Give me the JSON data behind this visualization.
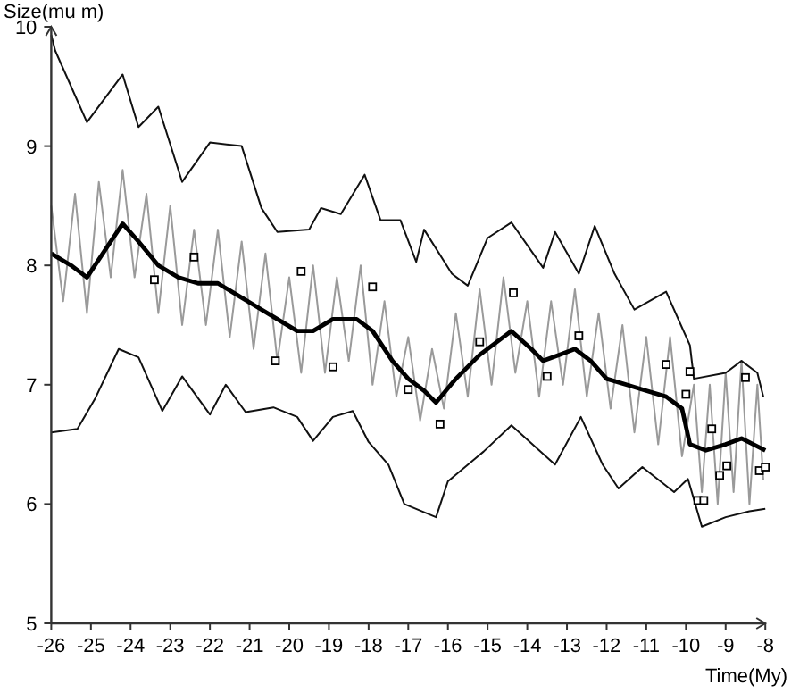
{
  "chart_data": {
    "type": "line",
    "xlabel": "Time(My)",
    "ylabel": "Size(mu m)",
    "xlim": [
      -26,
      -8
    ],
    "ylim": [
      5,
      10
    ],
    "xticks": [
      -26,
      -25,
      -24,
      -23,
      -22,
      -21,
      -20,
      -19,
      -18,
      -17,
      -16,
      -15,
      -14,
      -13,
      -12,
      -11,
      -10,
      -9,
      -8
    ],
    "yticks": [
      5,
      6,
      7,
      8,
      9,
      10
    ],
    "grid": false,
    "series": [
      {
        "color": "#9a9a9a",
        "x": [
          -26,
          -25.7,
          -25.4,
          -25.1,
          -24.8,
          -24.5,
          -24.2,
          -23.9,
          -23.6,
          -23.3,
          -23,
          -22.7,
          -22.4,
          -22.1,
          -21.8,
          -21.5,
          -21.2,
          -20.9,
          -20.6,
          -20.3,
          -20,
          -19.7,
          -19.4,
          -19.1,
          -18.8,
          -18.5,
          -18.2,
          -17.9,
          -17.6,
          -17.3,
          -17,
          -16.7,
          -16.4,
          -16.1,
          -15.8,
          -15.5,
          -15.2,
          -14.9,
          -14.6,
          -14.3,
          -14,
          -13.7,
          -13.4,
          -13.1,
          -12.8,
          -12.5,
          -12.2,
          -11.9,
          -11.6,
          -11.3,
          -11,
          -10.7,
          -10.4,
          -10.1,
          -9.8,
          -9.6,
          -9.4,
          -9.2,
          -9,
          -8.8,
          -8.6,
          -8.4,
          -8.2,
          -8.05
        ],
        "values": [
          8.5,
          7.7,
          8.6,
          7.6,
          8.7,
          7.9,
          8.8,
          7.9,
          8.6,
          7.6,
          8.5,
          7.5,
          8.3,
          7.5,
          8.3,
          7.4,
          8.2,
          7.3,
          8.1,
          7.2,
          7.9,
          7.1,
          8,
          7.1,
          7.9,
          7.2,
          8,
          7,
          7.7,
          6.9,
          7.4,
          6.7,
          7.3,
          6.8,
          7.6,
          6.9,
          7.8,
          7,
          7.9,
          7.1,
          7.7,
          6.9,
          7.7,
          7,
          7.8,
          6.9,
          7.6,
          6.8,
          7.5,
          6.6,
          7.4,
          6.5,
          7.4,
          6.4,
          7,
          6.1,
          7,
          6,
          7.1,
          6.1,
          7.2,
          6,
          7,
          6.2
        ]
      },
      {
        "color": "#111111",
        "x": [
          -26,
          -25.9,
          -25.1,
          -24.2,
          -23.8,
          -23.3,
          -22.7,
          -22,
          -21.2,
          -20.7,
          -20.3,
          -19.5,
          -19.2,
          -18.7,
          -18.1,
          -17.7,
          -17.2,
          -16.8,
          -16.6,
          -15.9,
          -15.5,
          -15,
          -14.4,
          -13.6,
          -13.3,
          -12.7,
          -12.3,
          -11.8,
          -11.3,
          -10.5,
          -9.9,
          -9.8,
          -9,
          -8.6,
          -8.2,
          -8.05
        ],
        "values": [
          9.93,
          9.8,
          9.2,
          9.6,
          9.16,
          9.33,
          8.7,
          9.03,
          9,
          8.48,
          8.28,
          8.3,
          8.48,
          8.43,
          8.76,
          8.38,
          8.38,
          8.03,
          8.3,
          7.93,
          7.83,
          8.23,
          8.36,
          7.98,
          8.28,
          7.93,
          8.33,
          7.93,
          7.63,
          7.78,
          7.33,
          7.05,
          7.1,
          7.2,
          7.1,
          6.9
        ]
      },
      {
        "color": "#111111",
        "x": [
          -26,
          -25.34,
          -24.9,
          -24.3,
          -23.8,
          -23.2,
          -22.7,
          -22,
          -21.6,
          -21.1,
          -20.4,
          -19.8,
          -19.4,
          -18.9,
          -18.4,
          -18,
          -17.5,
          -17.1,
          -16.3,
          -16,
          -15.1,
          -14.4,
          -13.3,
          -12.65,
          -12.1,
          -11.7,
          -11.1,
          -10.3,
          -9.95,
          -9.6,
          -9,
          -8.4,
          -8
        ],
        "values": [
          6.6,
          6.63,
          6.88,
          7.3,
          7.23,
          6.78,
          7.07,
          6.75,
          7,
          6.77,
          6.81,
          6.73,
          6.53,
          6.73,
          6.78,
          6.52,
          6.33,
          6,
          5.89,
          6.19,
          6.44,
          6.66,
          6.33,
          6.73,
          6.33,
          6.13,
          6.31,
          6.1,
          6.21,
          5.81,
          5.89,
          5.94,
          5.96
        ]
      },
      {
        "color": "#000000",
        "x": [
          -26,
          -25.5,
          -25.1,
          -24.6,
          -24.2,
          -23.8,
          -23.3,
          -22.8,
          -22.3,
          -21.8,
          -21.3,
          -20.8,
          -20.3,
          -19.8,
          -19.4,
          -18.9,
          -18.3,
          -17.9,
          -17.4,
          -17,
          -16.6,
          -16.3,
          -15.8,
          -15.2,
          -14.4,
          -13.9,
          -13.6,
          -13.2,
          -12.8,
          -12.4,
          -12,
          -11.5,
          -11,
          -10.5,
          -10.1,
          -9.9,
          -9.5,
          -9,
          -8.6,
          -8
        ],
        "values": [
          8.1,
          8,
          7.9,
          8.15,
          8.35,
          8.2,
          8,
          7.9,
          7.85,
          7.85,
          7.75,
          7.65,
          7.55,
          7.45,
          7.45,
          7.55,
          7.55,
          7.45,
          7.2,
          7.05,
          6.95,
          6.85,
          7.05,
          7.25,
          7.45,
          7.3,
          7.2,
          7.25,
          7.3,
          7.2,
          7.05,
          7,
          6.95,
          6.9,
          6.8,
          6.5,
          6.45,
          6.5,
          6.55,
          6.45
        ]
      },
      {
        "type": "scatter",
        "color": "#000000",
        "marker": "square",
        "x": [
          -23.4,
          -22.4,
          -19.7,
          -17.9,
          -20.35,
          -18.9,
          -17,
          -16.2,
          -15.2,
          -14.35,
          -13.5,
          -12.7,
          -10.5,
          -9.9,
          -10,
          -9.35,
          -9.7,
          -9.55,
          -9.15,
          -8.97,
          -8.5,
          -8.15,
          -8
        ],
        "values": [
          7.88,
          8.07,
          7.95,
          7.82,
          7.2,
          7.15,
          6.96,
          6.67,
          7.36,
          7.77,
          7.07,
          7.41,
          7.17,
          7.11,
          6.92,
          6.63,
          6.03,
          6.03,
          6.24,
          6.32,
          7.06,
          6.28,
          6.31
        ]
      }
    ]
  }
}
